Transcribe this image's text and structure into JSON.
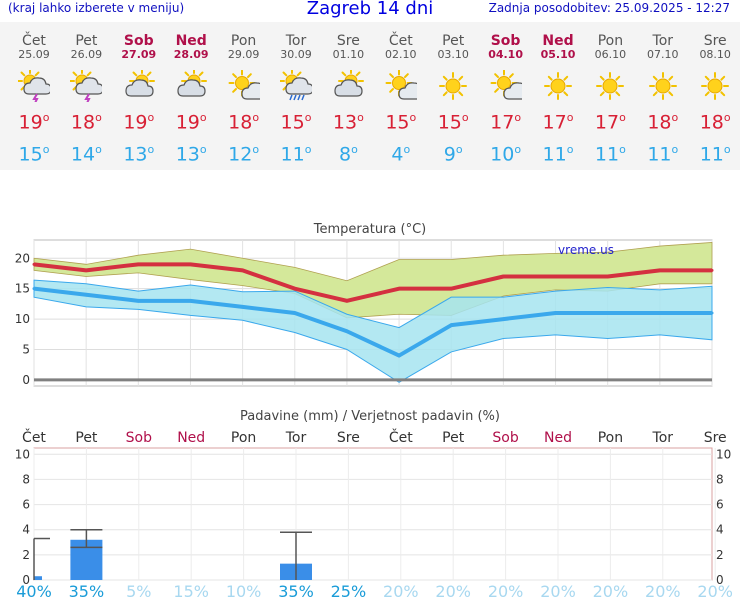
{
  "header": {
    "left_note": "(kraj lahko izberete v meniju)",
    "title": "Zagreb 14 dni",
    "updated": "Zadnja posodobitev: 25.09.2025 - 12:27"
  },
  "days": [
    {
      "name": "Čet",
      "date": "25.09",
      "weekend": false,
      "icon": "sun-cloud-storm-icon",
      "tmax": 19,
      "tmin": 15
    },
    {
      "name": "Pet",
      "date": "26.09",
      "weekend": false,
      "icon": "sun-cloud-storm-icon",
      "tmax": 18,
      "tmin": 14
    },
    {
      "name": "Sob",
      "date": "27.09",
      "weekend": true,
      "icon": "sun-behind-cloud-icon",
      "tmax": 19,
      "tmin": 13
    },
    {
      "name": "Ned",
      "date": "28.09",
      "weekend": true,
      "icon": "sun-behind-cloud-icon",
      "tmax": 19,
      "tmin": 13
    },
    {
      "name": "Pon",
      "date": "29.09",
      "weekend": false,
      "icon": "sun-small-cloud-icon",
      "tmax": 18,
      "tmin": 12
    },
    {
      "name": "Tor",
      "date": "30.09",
      "weekend": false,
      "icon": "sun-cloud-rain-icon",
      "tmax": 15,
      "tmin": 11
    },
    {
      "name": "Sre",
      "date": "01.10",
      "weekend": false,
      "icon": "sun-behind-cloud-icon",
      "tmax": 13,
      "tmin": 8
    },
    {
      "name": "Čet",
      "date": "02.10",
      "weekend": false,
      "icon": "sun-small-cloud-icon",
      "tmax": 15,
      "tmin": 4
    },
    {
      "name": "Pet",
      "date": "03.10",
      "weekend": false,
      "icon": "sun-icon",
      "tmax": 15,
      "tmin": 9
    },
    {
      "name": "Sob",
      "date": "04.10",
      "weekend": true,
      "icon": "sun-small-cloud-icon",
      "tmax": 17,
      "tmin": 10
    },
    {
      "name": "Ned",
      "date": "05.10",
      "weekend": true,
      "icon": "sun-icon",
      "tmax": 17,
      "tmin": 11
    },
    {
      "name": "Pon",
      "date": "06.10",
      "weekend": false,
      "icon": "sun-icon",
      "tmax": 17,
      "tmin": 11
    },
    {
      "name": "Tor",
      "date": "07.10",
      "weekend": false,
      "icon": "sun-icon",
      "tmax": 18,
      "tmin": 11
    },
    {
      "name": "Sre",
      "date": "08.10",
      "weekend": false,
      "icon": "sun-icon",
      "tmax": 18,
      "tmin": 11
    }
  ],
  "degree_symbol": "o",
  "chart_data": [
    {
      "type": "line",
      "title": "Temperatura (°C)",
      "watermark": "vreme.us",
      "categories": [
        "25.09",
        "26.09",
        "27.09",
        "28.09",
        "29.09",
        "30.09",
        "01.10",
        "02.10",
        "03.10",
        "04.10",
        "05.10",
        "06.10",
        "07.10",
        "08.10"
      ],
      "ylim": [
        -1,
        23
      ],
      "yticks": [
        0,
        5,
        10,
        15,
        20
      ],
      "grid": true,
      "series": [
        {
          "role": "max",
          "values": [
            19,
            18,
            19,
            19,
            18,
            15,
            13,
            15,
            15,
            17,
            17,
            17,
            18,
            18
          ],
          "color": "#d43040",
          "band_high": [
            20,
            19,
            20.5,
            21.5,
            20,
            18.5,
            16.3,
            19.8,
            19.8,
            20.5,
            20.8,
            21,
            22,
            22.6
          ],
          "band_low": [
            18,
            17,
            17.6,
            16.5,
            15.5,
            14.2,
            10.2,
            10.8,
            10.6,
            13.8,
            14.8,
            14.6,
            15.8,
            15.8
          ]
        },
        {
          "role": "min",
          "values": [
            15,
            14,
            13,
            13,
            12,
            11,
            8,
            4,
            9,
            10,
            11,
            11,
            11,
            11
          ],
          "color": "#3aa8ec",
          "band_high": [
            16.4,
            15.8,
            14.6,
            15.6,
            14.5,
            14.6,
            10.8,
            8.6,
            13.6,
            13.6,
            14.6,
            15.2,
            14.8,
            15.4
          ],
          "band_low": [
            13.6,
            12,
            11.6,
            10.6,
            9.8,
            7.8,
            5,
            -0.4,
            4.6,
            6.8,
            7.4,
            6.8,
            7.4,
            6.6
          ]
        }
      ],
      "colors": {
        "max_band": "#d4e89a",
        "min_band": "#a6e4f0",
        "band_overlap": "#8fd48e",
        "freezing_line": "#808080"
      }
    },
    {
      "type": "bar",
      "title": "Padavine (mm) / Verjetnost padavin (%)",
      "categories": [
        "Čet",
        "Pet",
        "Sob",
        "Ned",
        "Pon",
        "Tor",
        "Sre",
        "Čet",
        "Pet",
        "Sob",
        "Ned",
        "Pon",
        "Tor",
        "Sre"
      ],
      "weekend": [
        false,
        false,
        true,
        true,
        false,
        false,
        false,
        false,
        false,
        true,
        true,
        false,
        false,
        false
      ],
      "values": [
        0.3,
        3.2,
        0,
        0,
        0,
        1.3,
        0,
        0,
        0,
        0,
        0,
        0,
        0,
        0
      ],
      "error_max": [
        3.3,
        4.0,
        0,
        0,
        0,
        3.8,
        0,
        0,
        0,
        0,
        0,
        0,
        0,
        0
      ],
      "error_min": [
        0,
        2.6,
        0,
        0,
        0,
        0,
        0,
        0,
        0,
        0,
        0,
        0,
        0,
        0
      ],
      "probability": [
        "40%",
        "35%",
        "5%",
        "15%",
        "10%",
        "35%",
        "25%",
        "20%",
        "20%",
        "20%",
        "20%",
        "20%",
        "20%",
        "20%"
      ],
      "ylim": [
        0,
        10.5
      ],
      "yticks": [
        0,
        2,
        4,
        6,
        8,
        10
      ],
      "colors": {
        "bar": "#3a8ee8",
        "prob_high": "#1a9cd8",
        "prob_low": "#a8d8f0"
      }
    }
  ]
}
